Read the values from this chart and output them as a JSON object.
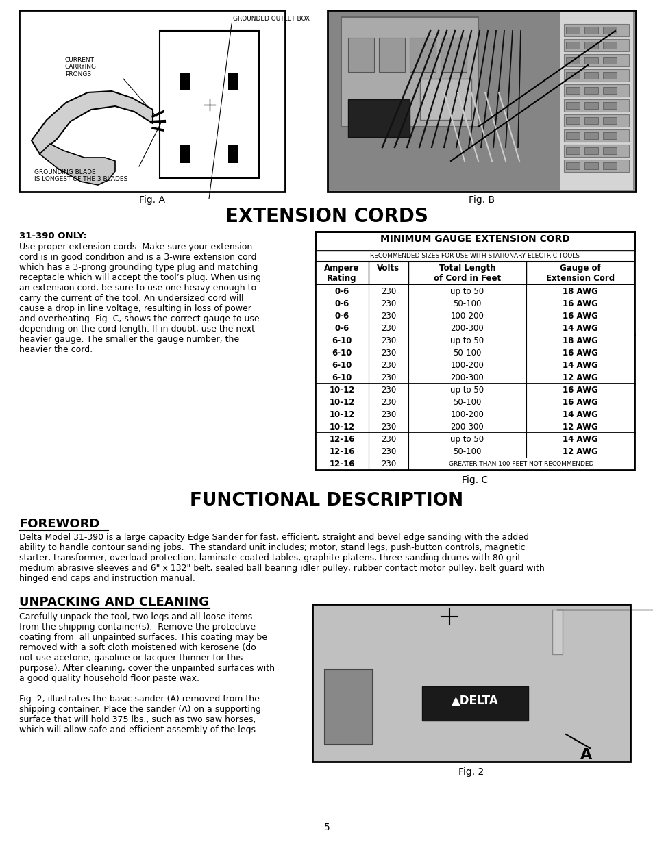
{
  "bg_color": "#ffffff",
  "page_number": "5",
  "extension_cords_title": "EXTENSION CORDS",
  "section_31390_only": "31-390 ONLY:",
  "extension_text": "Use proper extension cords. Make sure your extension\ncord is in good condition and is a 3-wire extension cord\nwhich has a 3-prong grounding type plug and matching\nreceptacle which will accept the tool’s plug. When using\nan extension cord, be sure to use one heavy enough to\ncarry the current of the tool. An undersized cord will\ncause a drop in line voltage, resulting in loss of power\nand overheating. Fig. C, shows the correct gauge to use\ndepending on the cord length. If in doubt, use the next\nheavier gauge. The smaller the gauge number, the\nheavier the cord.",
  "table_title": "MINIMUM GAUGE EXTENSION CORD",
  "table_subtitle": "RECOMMENDED SIZES FOR USE WITH STATIONARY ELECTRIC TOOLS",
  "table_headers": [
    "Ampere\nRating",
    "Volts",
    "Total Length\nof Cord in Feet",
    "Gauge of\nExtension Cord"
  ],
  "table_data": [
    [
      "0-6",
      "230",
      "up to 50",
      "18 AWG"
    ],
    [
      "0-6",
      "230",
      "50-100",
      "16 AWG"
    ],
    [
      "0-6",
      "230",
      "100-200",
      "16 AWG"
    ],
    [
      "0-6",
      "230",
      "200-300",
      "14 AWG"
    ],
    [
      "6-10",
      "230",
      "up to 50",
      "18 AWG"
    ],
    [
      "6-10",
      "230",
      "50-100",
      "16 AWG"
    ],
    [
      "6-10",
      "230",
      "100-200",
      "14 AWG"
    ],
    [
      "6-10",
      "230",
      "200-300",
      "12 AWG"
    ],
    [
      "10-12",
      "230",
      "up to 50",
      "16 AWG"
    ],
    [
      "10-12",
      "230",
      "50-100",
      "16 AWG"
    ],
    [
      "10-12",
      "230",
      "100-200",
      "14 AWG"
    ],
    [
      "10-12",
      "230",
      "200-300",
      "12 AWG"
    ],
    [
      "12-16",
      "230",
      "up to 50",
      "14 AWG"
    ],
    [
      "12-16",
      "230",
      "50-100",
      "12 AWG"
    ],
    [
      "12-16",
      "230",
      "GREATER THAN 100 FEET NOT RECOMMENDED",
      ""
    ]
  ],
  "table_caption": "Fig. C",
  "functional_title": "FUNCTIONAL DESCRIPTION",
  "foreword_title": "FOREWORD",
  "foreword_text": "Delta Model 31-390 is a large capacity Edge Sander for fast, efficient, straight and bevel edge sanding with the added\nability to handle contour sanding jobs.  The standard unit includes; motor, stand legs, push-button controls, magnetic\nstarter, transformer, overload protection, laminate coated tables, graphite platens, three sanding drums with 80 grit\nmedium abrasive sleeves and 6\" x 132\" belt, sealed ball bearing idler pulley, rubber contact motor pulley, belt guard with\nhinged end caps and instruction manual.",
  "unpacking_title": "UNPACKING AND CLEANING",
  "unpacking_text_left": "Carefully unpack the tool, two legs and all loose items\nfrom the shipping container(s).  Remove the protective\ncoating from  all unpainted surfaces. This coating may be\nremoved with a soft cloth moistened with kerosene (do\nnot use acetone, gasoline or lacquer thinner for this\npurpose). After cleaning, cover the unpainted surfaces with\na good quality household floor paste wax.\n\nFig. 2, illustrates the basic sander (A) removed from the\nshipping container. Place the sander (A) on a supporting\nsurface that will hold 375 lbs., such as two saw horses,\nwhich will allow safe and efficient assembly of the legs.",
  "fig2_caption": "Fig. 2",
  "fig_a_caption": "Fig. A",
  "fig_b_caption": "Fig. B"
}
